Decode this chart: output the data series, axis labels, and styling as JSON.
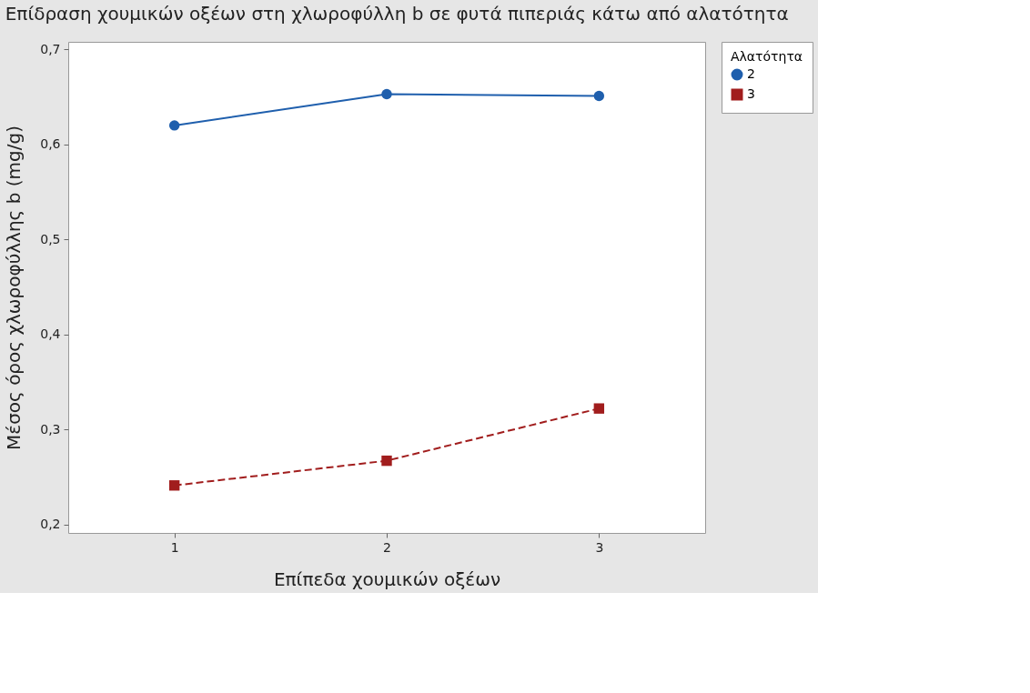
{
  "chart_data": {
    "type": "line",
    "title": "Επίδραση χουμικών οξέων στη χλωροφύλλη b σε φυτά πιπεριάς κάτω από αλατότητα",
    "xlabel": "Επίπεδα χουμικών οξέων",
    "ylabel": "Μέσος όρος χλωροφύλλης b (mg/g)",
    "legend_title": "Αλατότητα",
    "x": [
      1,
      2,
      3
    ],
    "xlim": [
      0.5,
      3.5
    ],
    "xticks": [
      1,
      2,
      3
    ],
    "ylim": [
      0.191,
      0.708
    ],
    "yticks": [
      {
        "value": 0.2,
        "label": "0,2"
      },
      {
        "value": 0.3,
        "label": "0,3"
      },
      {
        "value": 0.4,
        "label": "0,4"
      },
      {
        "value": 0.5,
        "label": "0,5"
      },
      {
        "value": 0.6,
        "label": "0,6"
      },
      {
        "value": 0.7,
        "label": "0,7"
      }
    ],
    "grid": false,
    "legend": "top right",
    "series": [
      {
        "name": "2",
        "color": "#1f5fad",
        "marker": "circle",
        "line_style": "solid",
        "values": [
          0.62,
          0.653,
          0.651
        ]
      },
      {
        "name": "3",
        "color": "#a11d1d",
        "marker": "square",
        "line_style": "dashed",
        "values": [
          0.241,
          0.267,
          0.322
        ]
      }
    ]
  }
}
